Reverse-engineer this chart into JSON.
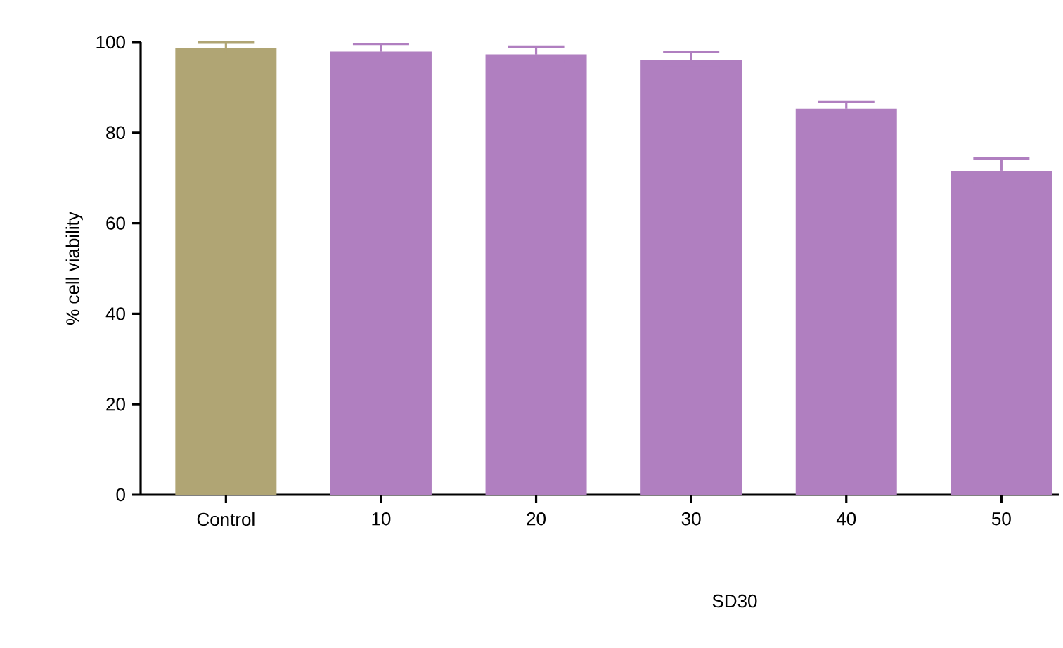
{
  "chart_data": {
    "type": "bar",
    "xlabel": "SD30",
    "ylabel": "% cell viability",
    "categories": [
      "Control",
      "10",
      "20",
      "30",
      "40",
      "50"
    ],
    "values": [
      98.6,
      97.9,
      97.3,
      96.1,
      85.3,
      71.6
    ],
    "errors": [
      1.4,
      1.7,
      1.7,
      1.7,
      1.6,
      2.7
    ],
    "colors": [
      "#b0a574",
      "#b07fc0",
      "#b07fc0",
      "#b07fc0",
      "#b07fc0",
      "#b07fc0"
    ],
    "ylim": [
      0,
      100
    ],
    "yticks": [
      0,
      20,
      40,
      60,
      80,
      100
    ],
    "grid": false
  }
}
